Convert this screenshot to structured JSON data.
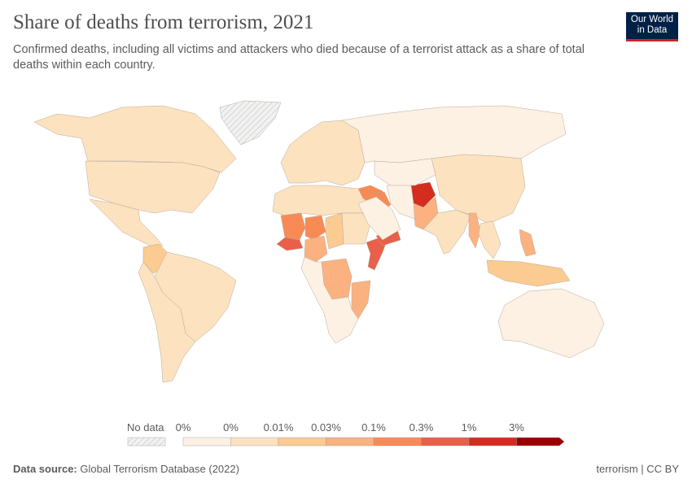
{
  "header": {
    "title": "Share of deaths from terrorism, 2021",
    "subtitle": "Confirmed deaths, including all victims and attackers who died because of a terrorist attack as a share of total deaths within each country.",
    "logo": "Our World in Data",
    "logo_line1": "Our World",
    "logo_line2": "in Data"
  },
  "chart_data": {
    "type": "choropleth",
    "title": "Share of deaths from terrorism, 2021",
    "legend": {
      "no_data_label": "No data",
      "tick_labels": [
        "0%",
        "0%",
        "0.01%",
        "0.03%",
        "0.1%",
        "0.3%",
        "1%",
        "3%"
      ],
      "bins": [
        {
          "range": "0%–0%",
          "color": "#fdf1e4"
        },
        {
          "range": "0%–0.01%",
          "color": "#fde2c0"
        },
        {
          "range": "0.01%–0.03%",
          "color": "#fccb91"
        },
        {
          "range": "0.03%–0.1%",
          "color": "#fbb280"
        },
        {
          "range": "0.1%–0.3%",
          "color": "#f88b55"
        },
        {
          "range": "0.3%–1%",
          "color": "#e8604a"
        },
        {
          "range": "1%–3%",
          "color": "#d42d20"
        },
        {
          "range": ">3%",
          "color": "#9b0000"
        }
      ],
      "no_data_color": "#e8e8e8"
    },
    "regions": [
      {
        "name": "Greenland",
        "bin": -1
      },
      {
        "name": "Canada",
        "bin": 1
      },
      {
        "name": "United States",
        "bin": 1
      },
      {
        "name": "Mexico",
        "bin": 1
      },
      {
        "name": "Colombia",
        "bin": 2
      },
      {
        "name": "Brazil",
        "bin": 1
      },
      {
        "name": "South America (other)",
        "bin": 1
      },
      {
        "name": "Europe",
        "bin": 1
      },
      {
        "name": "Russia",
        "bin": 0
      },
      {
        "name": "North Africa",
        "bin": 1
      },
      {
        "name": "Mali",
        "bin": 4
      },
      {
        "name": "Niger",
        "bin": 4
      },
      {
        "name": "Burkina Faso",
        "bin": 5
      },
      {
        "name": "Nigeria",
        "bin": 3
      },
      {
        "name": "Chad",
        "bin": 2
      },
      {
        "name": "Sudan",
        "bin": 1
      },
      {
        "name": "Somalia",
        "bin": 5
      },
      {
        "name": "DR Congo",
        "bin": 3
      },
      {
        "name": "Mozambique",
        "bin": 3
      },
      {
        "name": "Southern Africa",
        "bin": 0
      },
      {
        "name": "Syria",
        "bin": 4
      },
      {
        "name": "Iraq",
        "bin": 4
      },
      {
        "name": "Yemen",
        "bin": 5
      },
      {
        "name": "Saudi Arabia",
        "bin": 0
      },
      {
        "name": "Iran",
        "bin": 0
      },
      {
        "name": "Afghanistan",
        "bin": 6
      },
      {
        "name": "Pakistan",
        "bin": 3
      },
      {
        "name": "India",
        "bin": 1
      },
      {
        "name": "China",
        "bin": 1
      },
      {
        "name": "Myanmar",
        "bin": 3
      },
      {
        "name": "Southeast Asia",
        "bin": 1
      },
      {
        "name": "Philippines",
        "bin": 3
      },
      {
        "name": "Indonesia",
        "bin": 2
      },
      {
        "name": "Australia",
        "bin": 0
      },
      {
        "name": "Central Asia",
        "bin": 0
      }
    ]
  },
  "footer": {
    "source_label": "Data source:",
    "source": "Global Terrorism Database (2022)",
    "right": "terrorism | CC BY"
  }
}
